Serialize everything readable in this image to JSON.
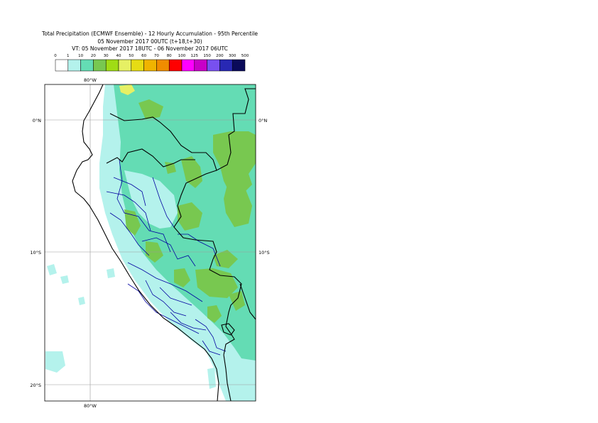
{
  "header": {
    "title_line1": "Total Precipitation (ECMWF Ensemble) - 12 Hourly Accumulation - 95th Percentile",
    "title_line2": "05 November 2017 00UTC (t+18,t+30)",
    "title_line3": "VT: 05 November 2017 18UTC - 06 November 2017 06UTC"
  },
  "legend": {
    "ticks": [
      "0",
      "1",
      "10",
      "20",
      "30",
      "40",
      "50",
      "60",
      "70",
      "80",
      "100",
      "125",
      "150",
      "200",
      "300",
      "500"
    ],
    "colors": [
      "#ffffff",
      "#b4f2ec",
      "#64dcb4",
      "#78c850",
      "#a0dc14",
      "#e6f064",
      "#e6dc14",
      "#f0b400",
      "#f08c00",
      "#ff0000",
      "#ff00ff",
      "#c800c8",
      "#7850f0",
      "#2828b4",
      "#0a0a5a"
    ]
  },
  "map": {
    "lon_labels": [
      "80°W",
      "80°W"
    ],
    "lat_labels": [
      "0°N",
      "0°N",
      "10°S",
      "10°S",
      "20°S"
    ],
    "palette": {
      "light": "#b4f2ec",
      "medium": "#64dcb4",
      "green": "#78c850",
      "lime": "#a0dc14",
      "yellow": "#e6f064",
      "country_border": "#000000",
      "province_border": "#0000a0"
    }
  }
}
